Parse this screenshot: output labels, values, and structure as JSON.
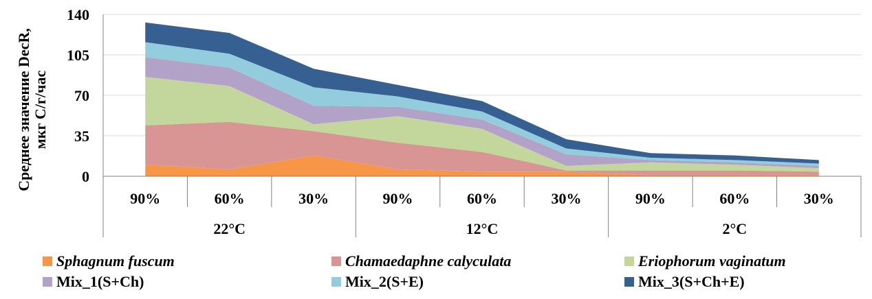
{
  "chart_data": {
    "type": "area",
    "stacked": true,
    "ylabel_line1": "Среднее значение DecR,",
    "ylabel_line2": "мкг С/г/час",
    "ylim": [
      0,
      140
    ],
    "yticks": [
      0,
      35,
      70,
      105,
      140
    ],
    "categories": [
      "90%",
      "60%",
      "30%",
      "90%",
      "60%",
      "30%",
      "90%",
      "60%",
      "30%"
    ],
    "groups": [
      {
        "label": "22°C",
        "span": 3
      },
      {
        "label": "12°C",
        "span": 3
      },
      {
        "label": "2°C",
        "span": 3
      }
    ],
    "series": [
      {
        "name": "Sphagnum fuscum",
        "italic": true,
        "color": "#f79646",
        "values": [
          10,
          6,
          18,
          6,
          4,
          4,
          1,
          1,
          1
        ]
      },
      {
        "name": "Chamaedaphne calyculata",
        "italic": true,
        "color": "#d99594",
        "values": [
          34,
          41,
          21,
          23,
          17,
          1,
          4,
          4,
          3
        ]
      },
      {
        "name": "Eriophorum vaginatum",
        "italic": true,
        "color": "#c3d69b",
        "values": [
          42,
          31,
          6,
          23,
          20,
          4,
          7,
          5,
          3
        ]
      },
      {
        "name": "Mix_1(S+Ch)",
        "italic": false,
        "color": "#b3a2c7",
        "values": [
          17,
          16,
          16,
          8,
          8,
          10,
          2,
          2,
          2
        ]
      },
      {
        "name": "Mix_2(S+E)",
        "italic": false,
        "color": "#93cddd",
        "values": [
          13,
          12,
          16,
          9,
          7,
          5,
          2,
          2,
          2
        ]
      },
      {
        "name": "Mix_3(S+Ch+E)",
        "italic": false,
        "color": "#376092",
        "values": [
          17,
          18,
          16,
          10,
          9,
          8,
          4,
          4,
          3
        ]
      }
    ],
    "legend_position": "bottom",
    "grid": true
  }
}
